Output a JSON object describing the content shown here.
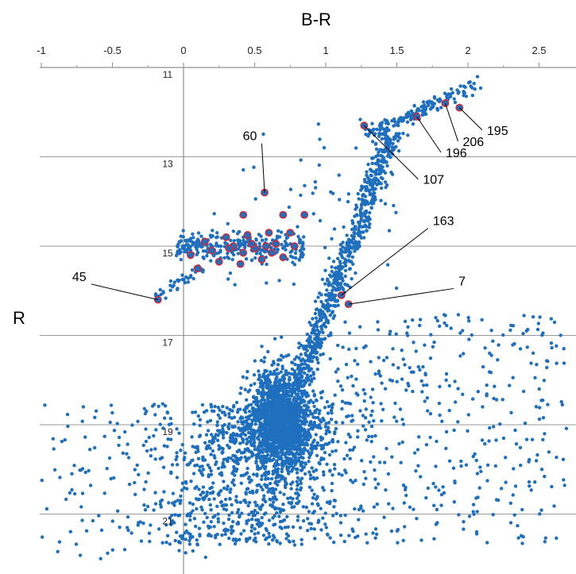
{
  "chart_data": {
    "type": "scatter",
    "title": "B-R",
    "xlabel": "",
    "ylabel": "R",
    "xlim": [
      -1,
      2.7
    ],
    "ylim": [
      11,
      22
    ],
    "y_inverted": true,
    "xticks": [
      "-1",
      "-0.5",
      "0",
      "0.5",
      "1",
      "1.5",
      "2",
      "2.5"
    ],
    "yticks": [
      "11",
      "13",
      "15",
      "17",
      "19",
      "21"
    ],
    "x_tick_values": [
      -1,
      -0.5,
      0,
      0.5,
      1,
      1.5,
      2,
      2.5
    ],
    "y_tick_values": [
      11,
      13,
      15,
      17,
      19,
      21
    ],
    "grid": "horizontal",
    "colors": {
      "point": "#1f6fbf",
      "highlight": "#e0202a",
      "grid": "#9a9a9a"
    },
    "highlighted_points": [
      [
        0.57,
        13.8
      ],
      [
        0.42,
        14.3
      ],
      [
        0.7,
        14.3
      ],
      [
        0.85,
        14.3
      ],
      [
        0.15,
        14.9
      ],
      [
        0.3,
        14.8
      ],
      [
        0.45,
        14.75
      ],
      [
        0.6,
        14.7
      ],
      [
        0.75,
        14.7
      ],
      [
        0.05,
        15.2
      ],
      [
        0.2,
        15.1
      ],
      [
        0.35,
        15.0
      ],
      [
        0.5,
        15.05
      ],
      [
        0.65,
        14.95
      ],
      [
        0.78,
        15.0
      ],
      [
        0.1,
        15.5
      ],
      [
        0.25,
        15.35
      ],
      [
        0.4,
        15.4
      ],
      [
        0.55,
        15.3
      ],
      [
        0.7,
        15.25
      ],
      [
        0.32,
        15.05
      ],
      [
        0.48,
        14.95
      ],
      [
        0.62,
        15.15
      ],
      [
        0.42,
        15.15
      ],
      [
        0.58,
        15.0
      ],
      [
        -0.18,
        16.2
      ],
      [
        1.27,
        12.3
      ],
      [
        1.84,
        11.8
      ],
      [
        1.94,
        11.9
      ],
      [
        1.64,
        12.1
      ],
      [
        1.11,
        16.1
      ],
      [
        1.16,
        16.3
      ]
    ],
    "annotations": [
      {
        "label": "60",
        "point": [
          0.57,
          13.8
        ],
        "text_at": [
          0.55,
          12.7
        ]
      },
      {
        "label": "45",
        "point": [
          -0.18,
          16.2
        ],
        "text_at": [
          -0.65,
          15.85
        ]
      },
      {
        "label": "107",
        "point": [
          1.27,
          12.3
        ],
        "text_at": [
          1.65,
          13.5
        ]
      },
      {
        "label": "196",
        "point": [
          1.64,
          12.1
        ],
        "text_at": [
          1.81,
          12.9
        ]
      },
      {
        "label": "206",
        "point": [
          1.84,
          11.8
        ],
        "text_at": [
          1.93,
          12.65
        ]
      },
      {
        "label": "195",
        "point": [
          1.94,
          11.9
        ],
        "text_at": [
          2.1,
          12.4
        ]
      },
      {
        "label": "163",
        "point": [
          1.11,
          16.1
        ],
        "text_at": [
          1.72,
          14.6
        ]
      },
      {
        "label": "7",
        "point": [
          1.16,
          16.3
        ],
        "text_at": [
          1.9,
          15.95
        ]
      }
    ]
  }
}
